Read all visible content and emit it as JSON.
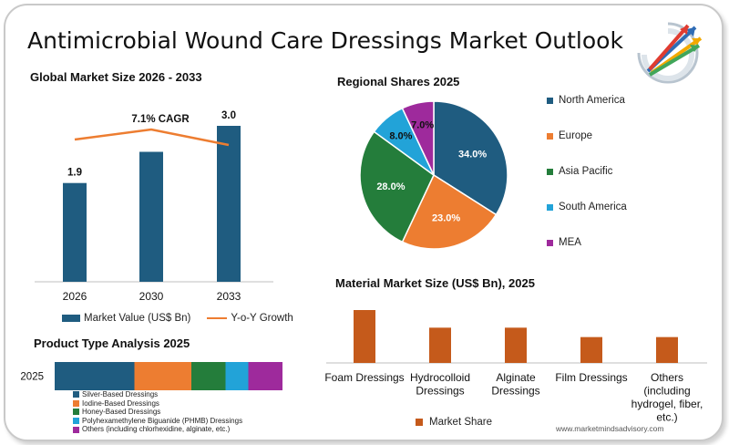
{
  "page_title": "Antimicrobial Wound Care Dressings Market Outlook",
  "footer_url": "www.marketmindsadvisory.com",
  "colors": {
    "navy": "#1f5c80",
    "orange": "#ed7d31",
    "green": "#247d3b",
    "sky": "#22a3d8",
    "magenta": "#9e2a9c",
    "rust": "#c55a1b"
  },
  "chart_data": [
    {
      "type": "bar",
      "title": "Global Market Size 2026 - 2033",
      "categories": [
        "2026",
        "2030",
        "2033"
      ],
      "series": [
        {
          "name": "Market Value (US$ Bn)",
          "values": [
            1.9,
            2.5,
            3.0
          ],
          "labels": [
            "1.9",
            "",
            "3.0"
          ]
        },
        {
          "name": "Y-o-Y Growth",
          "type": "line"
        }
      ],
      "annotation": "7.1% CAGR",
      "ylim": [
        0,
        3.0
      ]
    },
    {
      "type": "pie",
      "title": "Regional Shares 2025",
      "labels": [
        "North America",
        "Europe",
        "Asia Pacific",
        "South America",
        "MEA"
      ],
      "values": [
        34.0,
        23.0,
        28.0,
        8.0,
        7.0
      ],
      "value_labels": [
        "34.0%",
        "23.0%",
        "28.0%",
        "8.0%",
        "7.0%"
      ],
      "legend": "right"
    },
    {
      "type": "bar",
      "orientation": "horizontal-stacked",
      "title": "Product Type Analysis 2025",
      "categories": [
        "2025"
      ],
      "series": [
        {
          "name": "Silver-Based Dressings",
          "values": [
            35
          ]
        },
        {
          "name": "Iodine-Based Dressings",
          "values": [
            25
          ]
        },
        {
          "name": "Honey-Based Dressings",
          "values": [
            15
          ]
        },
        {
          "name": "Polyhexamethylene Biguanide (PHMB) Dressings",
          "values": [
            10
          ]
        },
        {
          "name": "Others (including chlorhexidine, alginate, etc.)",
          "values": [
            15
          ]
        }
      ],
      "legend": "bottom"
    },
    {
      "type": "bar",
      "title": "Material Market Size (US$ Bn), 2025",
      "categories": [
        [
          "Foam Dressings"
        ],
        [
          "Hydrocolloid",
          "Dressings"
        ],
        [
          "Alginate",
          "Dressings"
        ],
        [
          "Film Dressings"
        ],
        [
          "Others",
          "(including",
          "hydrogel, fiber,",
          "etc.)"
        ]
      ],
      "series": [
        {
          "name": "Market Share",
          "values": [
            0.45,
            0.3,
            0.3,
            0.22,
            0.22
          ]
        }
      ],
      "ylim": [
        0,
        0.45
      ],
      "legend": "bottom"
    }
  ]
}
